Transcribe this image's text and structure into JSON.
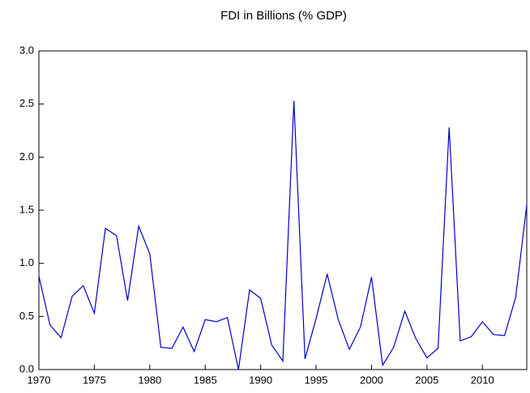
{
  "chart_data": {
    "type": "line",
    "title": "FDI in Billions (% GDP)",
    "x": [
      1970,
      1971,
      1972,
      1973,
      1974,
      1975,
      1976,
      1977,
      1978,
      1979,
      1980,
      1981,
      1982,
      1983,
      1984,
      1985,
      1986,
      1987,
      1988,
      1989,
      1990,
      1991,
      1992,
      1993,
      1994,
      1995,
      1996,
      1997,
      1998,
      1999,
      2000,
      2001,
      2002,
      2003,
      2004,
      2005,
      2006,
      2007,
      2008,
      2009,
      2010,
      2011,
      2012,
      2013,
      2014
    ],
    "series": [
      {
        "name": "FDI",
        "color": "#0000cc",
        "values": [
          0.88,
          0.42,
          0.3,
          0.69,
          0.79,
          0.53,
          1.33,
          1.26,
          0.65,
          1.35,
          1.09,
          0.21,
          0.2,
          0.4,
          0.17,
          0.47,
          0.45,
          0.49,
          0.0,
          0.75,
          0.67,
          0.23,
          0.08,
          2.53,
          0.1,
          0.48,
          0.9,
          0.47,
          0.19,
          0.4,
          0.87,
          0.04,
          0.21,
          0.55,
          0.29,
          0.11,
          0.2,
          2.28,
          0.27,
          0.31,
          0.45,
          0.33,
          0.32,
          0.68,
          1.55
        ]
      }
    ],
    "xlim": [
      1970,
      2014
    ],
    "xticks": [
      1970,
      1975,
      1980,
      1985,
      1990,
      1995,
      2000,
      2005,
      2010
    ],
    "ylim": [
      0,
      3
    ],
    "yticks": [
      {
        "value": 0,
        "label": "0.0"
      },
      {
        "value": 0.5,
        "label": "0.5"
      },
      {
        "value": 1,
        "label": "1.0"
      },
      {
        "value": 1.5,
        "label": "1.5"
      },
      {
        "value": 2,
        "label": "2.0"
      },
      {
        "value": 2.5,
        "label": "2.5"
      },
      {
        "value": 3,
        "label": "3.0"
      }
    ],
    "grid": false
  }
}
